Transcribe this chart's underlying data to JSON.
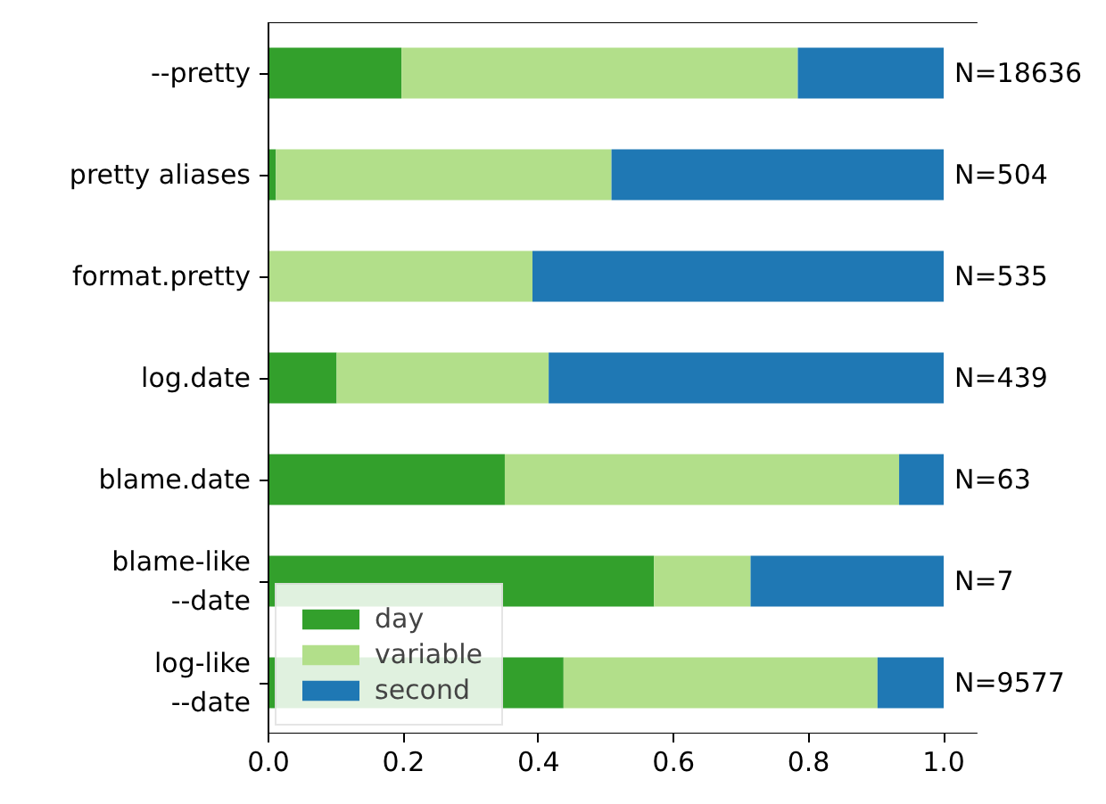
{
  "chart_data": {
    "type": "bar",
    "orientation": "horizontal",
    "stacked": true,
    "categories": [
      "--pretty",
      "pretty aliases",
      "format.pretty",
      "log.date",
      "blame.date",
      "blame-like\n--date",
      "log-like\n--date"
    ],
    "series": [
      {
        "name": "day",
        "color": "#33a02c",
        "values": [
          0.197,
          0.011,
          0.0,
          0.101,
          0.35,
          0.571,
          0.437
        ]
      },
      {
        "name": "variable",
        "color": "#b2df8a",
        "values": [
          0.587,
          0.497,
          0.391,
          0.314,
          0.584,
          0.143,
          0.465
        ]
      },
      {
        "name": "second",
        "color": "#1f78b4",
        "values": [
          0.216,
          0.492,
          0.609,
          0.585,
          0.066,
          0.286,
          0.098
        ]
      }
    ],
    "xlim": [
      0,
      1.05
    ],
    "xticks": [
      {
        "value": 0,
        "label": "0.0"
      },
      0.2,
      0.4,
      0.6,
      0.8,
      {
        "value": 1,
        "label": "1.0"
      }
    ],
    "grid": false,
    "legend": "bottom left",
    "annotations": [
      "N=18636",
      "N=504",
      "N=535",
      "N=439",
      "N=63",
      "N=7",
      "N=9577"
    ]
  }
}
